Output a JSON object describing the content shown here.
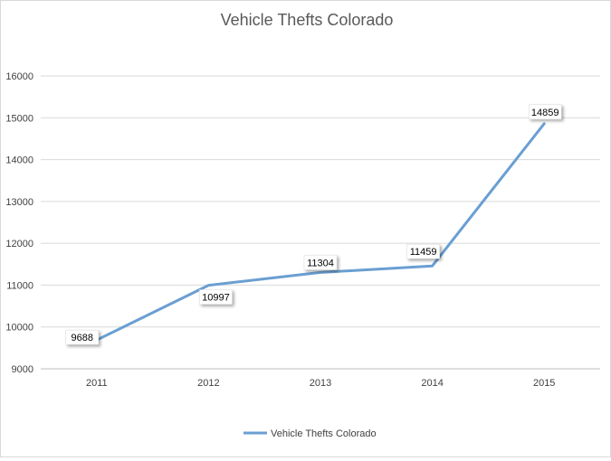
{
  "chart_data": {
    "type": "line",
    "title": "Vehicle Thefts Colorado",
    "xlabel": "",
    "ylabel": "",
    "categories": [
      "2011",
      "2012",
      "2013",
      "2014",
      "2015"
    ],
    "series": [
      {
        "name": "Vehicle Thefts Colorado",
        "values": [
          9688,
          10997,
          11304,
          11459,
          14859
        ],
        "color": "#6a9fd2"
      }
    ],
    "ylim": [
      9000,
      16000
    ],
    "yticks": [
      9000,
      10000,
      11000,
      12000,
      13000,
      14000,
      15000,
      16000
    ],
    "grid": true,
    "legend": "bottom",
    "data_labels": true
  }
}
